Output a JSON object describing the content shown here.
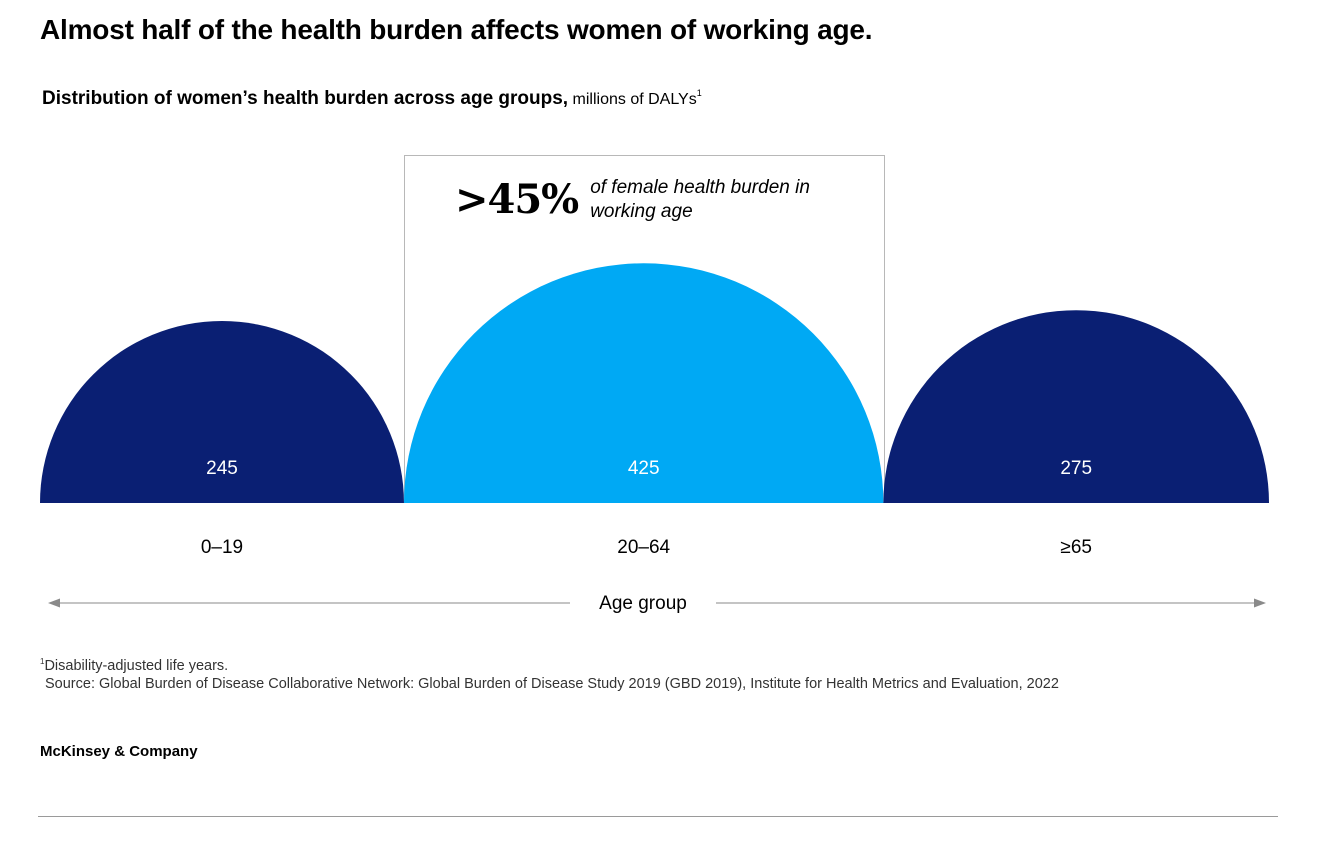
{
  "title": "Almost half of the health burden affects women of working age.",
  "subtitle": {
    "bold": "Distribution of women’s health burden across age groups,",
    "unit": " millions of DALYs",
    "sup": "1"
  },
  "callout": {
    "value": ">45%",
    "text": "of female health burden in working age"
  },
  "chart_data": {
    "type": "semicircle",
    "title": "Distribution of women’s health burden across age groups",
    "units": "millions of DALYs",
    "xlabel": "Age group",
    "categories": [
      "0–19",
      "20–64",
      "≥65"
    ],
    "values": [
      245,
      425,
      275
    ],
    "colors": [
      "#0a1f73",
      "#00a9f4",
      "#0a1f73"
    ],
    "highlighted": "20–64"
  },
  "footnote": {
    "marker": "1",
    "text": "Disability-adjusted life years.",
    "source": "Source: Global Burden of Disease Collaborative Network: Global Burden of Disease Study 2019 (GBD 2019), Institute for Health Metrics and Evaluation, 2022"
  },
  "brand": "McKinsey & Company"
}
